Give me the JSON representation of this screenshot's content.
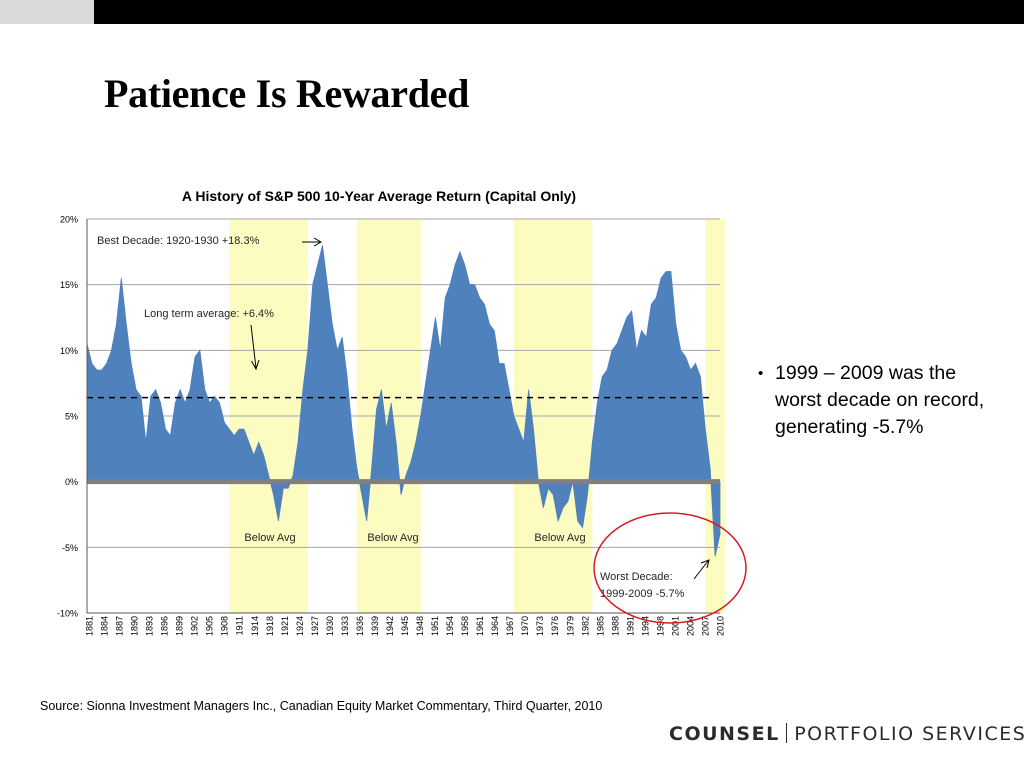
{
  "slide": {
    "title": "Patience Is Rewarded",
    "bullet": "1999 – 2009 was the worst decade on record, generating -5.7%",
    "bullet_marker": "•",
    "source": "Source: Sionna Investment Managers Inc., Canadian Equity Market Commentary, Third Quarter, 2010",
    "logo": {
      "brand": "COUNSEL",
      "sub": "PORTFOLIO SERVICES"
    }
  },
  "colors": {
    "series": "#4f81bd",
    "highlight": "#fdfcc0",
    "circle": "#d22020",
    "grid": "#a6a6a6",
    "zero_line": "#808080",
    "top_bar": "#000000",
    "top_accent": "#d9d9d9"
  },
  "chart_data": {
    "type": "area",
    "title": "A History of S&P 500 10-Year Average Return (Capital Only)",
    "xlabel": "",
    "ylabel": "",
    "ylim": [
      -10,
      20
    ],
    "xlim": [
      1881,
      2010
    ],
    "y_ticks": [
      20,
      15,
      10,
      5,
      0,
      -5,
      -10
    ],
    "y_tick_labels": [
      "20%",
      "15%",
      "10%",
      "5%",
      "0%",
      "-5%",
      "-10%"
    ],
    "x_tick_labels": [
      "1881",
      "1884",
      "1887",
      "1890",
      "1893",
      "1896",
      "1899",
      "1902",
      "1905",
      "1908",
      "1911",
      "1914",
      "1918",
      "1921",
      "1924",
      "1927",
      "1930",
      "1933",
      "1936",
      "1939",
      "1942",
      "1945",
      "1948",
      "1951",
      "1954",
      "1958",
      "1961",
      "1964",
      "1967",
      "1970",
      "1973",
      "1976",
      "1979",
      "1982",
      "1985",
      "1988",
      "1991",
      "1994",
      "1998",
      "2001",
      "2004",
      "2007",
      "2010"
    ],
    "grid": true,
    "legend": "none",
    "reference_line": {
      "value": 6.4,
      "style": "dashed"
    },
    "shaded_periods": [
      [
        1910,
        1926
      ],
      [
        1936,
        1949
      ],
      [
        1968,
        1984
      ],
      [
        2007,
        2011
      ]
    ],
    "series": [
      {
        "x": [
          1881,
          1882,
          1883,
          1884,
          1885,
          1886,
          1887,
          1888,
          1889,
          1890,
          1891,
          1892,
          1893,
          1894,
          1895,
          1896,
          1897,
          1898,
          1899,
          1900,
          1901,
          1902,
          1903,
          1904,
          1905,
          1906,
          1907,
          1908,
          1909,
          1910,
          1911,
          1912,
          1913,
          1914,
          1915,
          1916,
          1917,
          1918,
          1919,
          1920,
          1921,
          1922,
          1923,
          1924,
          1925,
          1926,
          1927,
          1928,
          1929,
          1930,
          1931,
          1932,
          1933,
          1934,
          1935,
          1936,
          1937,
          1938,
          1939,
          1940,
          1941,
          1942,
          1943,
          1944,
          1945,
          1946,
          1947,
          1948,
          1949,
          1950,
          1951,
          1952,
          1953,
          1954,
          1955,
          1956,
          1957,
          1958,
          1959,
          1960,
          1961,
          1962,
          1963,
          1964,
          1965,
          1966,
          1967,
          1968,
          1969,
          1970,
          1971,
          1972,
          1973,
          1974,
          1975,
          1976,
          1977,
          1978,
          1979,
          1980,
          1981,
          1982,
          1983,
          1984,
          1985,
          1986,
          1987,
          1988,
          1989,
          1990,
          1991,
          1992,
          1993,
          1994,
          1995,
          1996,
          1997,
          1998,
          1999,
          2000,
          2001,
          2002,
          2003,
          2004,
          2005,
          2006,
          2007,
          2008,
          2009,
          2010
        ],
        "y": [
          10.5,
          9.0,
          8.5,
          8.5,
          9.0,
          10.0,
          12.0,
          15.5,
          12.0,
          9.0,
          7.0,
          6.5,
          3.0,
          6.5,
          7.0,
          6.0,
          4.0,
          3.5,
          6.0,
          7.0,
          6.0,
          7.0,
          9.5,
          10.0,
          7.0,
          6.0,
          6.5,
          6.0,
          4.5,
          4.0,
          3.5,
          4.0,
          4.0,
          3.0,
          2.0,
          3.0,
          2.0,
          0.5,
          -1.0,
          -3.0,
          -0.5,
          -0.5,
          0.5,
          3.0,
          7.0,
          10.0,
          15.0,
          16.5,
          18.0,
          15.0,
          12.0,
          10.0,
          11.0,
          8.0,
          4.0,
          1.0,
          -1.0,
          -3.0,
          1.0,
          5.5,
          7.0,
          4.0,
          6.0,
          3.0,
          -1.0,
          0.5,
          1.5,
          3.0,
          5.0,
          7.5,
          10.0,
          12.5,
          10.0,
          14.0,
          15.0,
          16.5,
          17.5,
          16.5,
          15.0,
          15.0,
          14.0,
          13.5,
          12.0,
          11.5,
          9.0,
          9.0,
          7.0,
          5.0,
          4.0,
          3.0,
          7.0,
          4.0,
          0.0,
          -2.0,
          -0.5,
          -1.0,
          -3.0,
          -2.0,
          -1.5,
          0.0,
          -3.0,
          -3.5,
          -1.0,
          3.0,
          6.0,
          8.0,
          8.5,
          10.0,
          10.5,
          11.5,
          12.5,
          13.0,
          10.0,
          11.5,
          11.0,
          13.5,
          14.0,
          15.5,
          16.0,
          16.0,
          12.0,
          10.0,
          9.5,
          8.5,
          9.0,
          8.0,
          4.0,
          1.0,
          -5.7,
          -4.0
        ]
      }
    ],
    "annotations": [
      "Best Decade:  1920-1930 +18.3%",
      "Long term average:  +6.4%",
      "Below Avg",
      "Below Avg",
      "Below Avg",
      "Worst Decade:",
      "1999-2009 -5.7%"
    ]
  }
}
